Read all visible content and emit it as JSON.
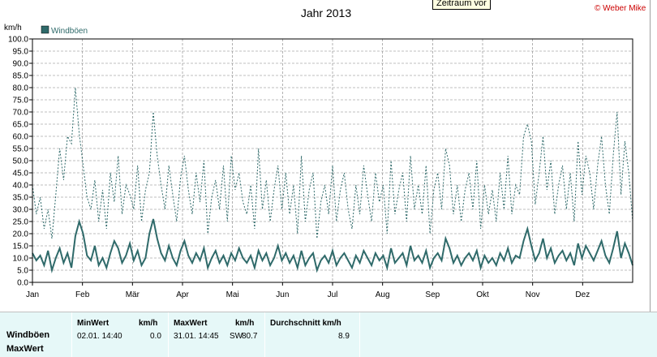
{
  "chart_data": {
    "type": "line",
    "title": "Jahr 2013",
    "ylabel": "km/h",
    "ylim": [
      0,
      100
    ],
    "yticks": [
      "100.0",
      "95.0",
      "90.0",
      "85.0",
      "80.0",
      "75.0",
      "70.0",
      "65.0",
      "60.0",
      "55.0",
      "50.0",
      "45.0",
      "40.0",
      "35.0",
      "30.0",
      "25.0",
      "20.0",
      "15.0",
      "10.0",
      "5.0",
      "0.0"
    ],
    "xticks": [
      "Jan",
      "Feb",
      "Mär",
      "Apr",
      "Mai",
      "Jun",
      "Jul",
      "Aug",
      "Sep",
      "Okt",
      "Nov",
      "Dez"
    ],
    "grid": true,
    "legend_position": "top-left",
    "series": [
      {
        "name": "Windböen",
        "color": "#2f6a6a",
        "style": "solid",
        "values": [
          12,
          9,
          11,
          7,
          13,
          5,
          10,
          14,
          8,
          12,
          6,
          19,
          25,
          20,
          11,
          9,
          15,
          7,
          10,
          6,
          12,
          17,
          14,
          8,
          11,
          16,
          9,
          13,
          7,
          10,
          20,
          26,
          18,
          12,
          9,
          15,
          10,
          7,
          13,
          17,
          11,
          8,
          12,
          9,
          14,
          6,
          10,
          13,
          8,
          11,
          7,
          12,
          9,
          14,
          10,
          8,
          11,
          6,
          13,
          9,
          12,
          7,
          10,
          15,
          9,
          12,
          8,
          11,
          6,
          13,
          7,
          10,
          12,
          5,
          9,
          11,
          8,
          13,
          7,
          10,
          12,
          9,
          6,
          11,
          8,
          13,
          10,
          7,
          12,
          9,
          11,
          6,
          14,
          8,
          10,
          12,
          7,
          15,
          9,
          11,
          8,
          13,
          6,
          10,
          12,
          9,
          18,
          14,
          8,
          11,
          7,
          10,
          12,
          9,
          13,
          6,
          11,
          8,
          10,
          7,
          12,
          9,
          14,
          8,
          11,
          10,
          17,
          22,
          15,
          9,
          12,
          18,
          10,
          14,
          8,
          11,
          13,
          9,
          12,
          7,
          16,
          10,
          15,
          12,
          9,
          13,
          17,
          11,
          8,
          14,
          21,
          10,
          16,
          12,
          7
        ]
      },
      {
        "name": "MaxWert",
        "color": "#2f6a6a",
        "style": "dotted",
        "values": [
          40,
          28,
          35,
          22,
          30,
          18,
          36,
          55,
          42,
          60,
          57,
          80,
          61,
          48,
          35,
          30,
          42,
          25,
          38,
          22,
          45,
          33,
          52,
          28,
          40,
          36,
          30,
          48,
          25,
          38,
          45,
          70,
          52,
          40,
          30,
          48,
          36,
          25,
          43,
          52,
          38,
          28,
          45,
          33,
          50,
          20,
          35,
          42,
          30,
          48,
          25,
          52,
          38,
          45,
          33,
          28,
          40,
          22,
          55,
          30,
          42,
          25,
          38,
          48,
          30,
          45,
          28,
          40,
          20,
          52,
          25,
          38,
          45,
          18,
          33,
          40,
          28,
          48,
          25,
          38,
          45,
          30,
          22,
          40,
          28,
          48,
          36,
          25,
          45,
          33,
          40,
          20,
          50,
          28,
          38,
          45,
          25,
          52,
          30,
          40,
          28,
          48,
          20,
          38,
          45,
          30,
          55,
          48,
          28,
          40,
          25,
          38,
          45,
          30,
          50,
          22,
          40,
          28,
          38,
          25,
          45,
          30,
          52,
          28,
          40,
          36,
          60,
          65,
          58,
          32,
          45,
          60,
          38,
          50,
          28,
          40,
          48,
          30,
          45,
          25,
          58,
          36,
          52,
          45,
          30,
          48,
          60,
          40,
          28,
          52,
          70,
          36,
          58,
          45,
          25
        ]
      }
    ]
  },
  "ui": {
    "tooltip": "Zeitraum vor",
    "copyright": "© Weber Mike",
    "legend_label": "Windböen"
  },
  "stats": {
    "row1_label": "Windböen",
    "row2_label": "MaxWert",
    "min_header": "MinWert",
    "min_unit": "km/h",
    "min_time": "02.01.  14:40",
    "min_value": "0.0",
    "max_header": "MaxWert",
    "max_unit": "km/h",
    "max_time": "31.01.  14:45",
    "max_dir": "SW",
    "max_value": "80.7",
    "avg_header": "Durchschnitt km/h",
    "avg_value": "8.9"
  }
}
